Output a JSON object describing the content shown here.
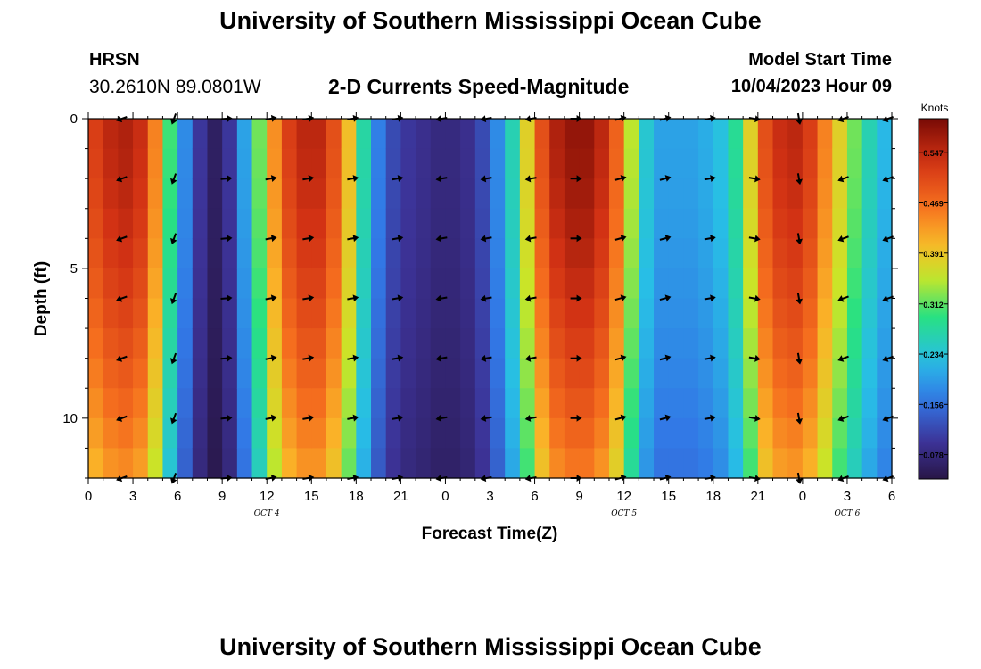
{
  "page": {
    "title": "University of Southern Mississippi Ocean Cube",
    "footer_title": "University of Southern Mississippi Ocean Cube",
    "station": "HRSN",
    "coordinates": "30.2610N  89.0801W",
    "model_start_label": "Model Start Time",
    "model_start_value": "10/04/2023 Hour 09"
  },
  "chart_data": {
    "type": "heatmap",
    "title": "2-D Currents Speed-Magnitude",
    "xlabel": "Forecast Time(Z)",
    "ylabel": "Depth (ft)",
    "colorbar_label": "Knots",
    "colorbar_ticks": [
      0.078,
      0.156,
      0.234,
      0.312,
      0.391,
      0.469,
      0.547
    ],
    "colorbar_tick_labels": [
      "0.078",
      "0.156",
      "0.234",
      "0.312",
      "0.391",
      "0.469",
      "0.547"
    ],
    "color_range": [
      0.04,
      0.6
    ],
    "x_range_hours": [
      0,
      54
    ],
    "y_range_ft": [
      0,
      12
    ],
    "y_ticks": [
      0,
      5,
      10
    ],
    "y_tick_labels": [
      "0",
      "5",
      "10"
    ],
    "x_ticks_hours": [
      0,
      3,
      6,
      9,
      12,
      15,
      18,
      21,
      24,
      27,
      30,
      33,
      36,
      39,
      42,
      45,
      48,
      51,
      54
    ],
    "x_tick_labels": [
      "0",
      "3",
      "6",
      "9",
      "12",
      "15",
      "18",
      "21",
      "0",
      "3",
      "6",
      "9",
      "12",
      "15",
      "18",
      "21",
      "0",
      "3",
      "6"
    ],
    "date_labels": [
      {
        "hour": 12,
        "text": "OCT 4"
      },
      {
        "hour": 36,
        "text": "OCT 5"
      },
      {
        "hour": 51,
        "text": "OCT 6"
      }
    ],
    "time_hours": [
      0.5,
      1.5,
      2.5,
      3.5,
      4.5,
      5.5,
      6.5,
      7.5,
      8.5,
      9.5,
      10.5,
      11.5,
      12.5,
      13.5,
      14.5,
      15.5,
      16.5,
      17.5,
      18.5,
      19.5,
      20.5,
      21.5,
      22.5,
      23.5,
      24.5,
      25.5,
      26.5,
      27.5,
      28.5,
      29.5,
      30.5,
      31.5,
      32.5,
      33.5,
      34.5,
      35.5,
      36.5,
      37.5,
      38.5,
      39.5,
      40.5,
      41.5,
      42.5,
      43.5,
      44.5,
      45.5,
      46.5,
      47.5,
      48.5,
      49.5,
      50.5,
      51.5,
      52.5,
      53.5
    ],
    "surface_speed_knots": [
      0.52,
      0.55,
      0.56,
      0.54,
      0.45,
      0.3,
      0.18,
      0.1,
      0.06,
      0.1,
      0.2,
      0.32,
      0.44,
      0.52,
      0.55,
      0.55,
      0.5,
      0.4,
      0.27,
      0.17,
      0.12,
      0.1,
      0.09,
      0.08,
      0.08,
      0.09,
      0.12,
      0.18,
      0.26,
      0.38,
      0.5,
      0.56,
      0.58,
      0.58,
      0.55,
      0.48,
      0.35,
      0.24,
      0.2,
      0.2,
      0.2,
      0.21,
      0.23,
      0.28,
      0.38,
      0.5,
      0.54,
      0.55,
      0.52,
      0.45,
      0.38,
      0.32,
      0.26,
      0.22
    ],
    "vector_depths_ft": [
      0,
      2,
      4,
      6,
      8,
      10,
      12
    ],
    "vector_times_hours": [
      2.5,
      6,
      9.5,
      12.5,
      15,
      18,
      21,
      24,
      27,
      30,
      33,
      36,
      39,
      42,
      45,
      48,
      51,
      54
    ],
    "vector_directions_deg": [
      200,
      250,
      5,
      10,
      10,
      10,
      10,
      190,
      190,
      190,
      0,
      15,
      15,
      10,
      350,
      280,
      200,
      200
    ]
  }
}
